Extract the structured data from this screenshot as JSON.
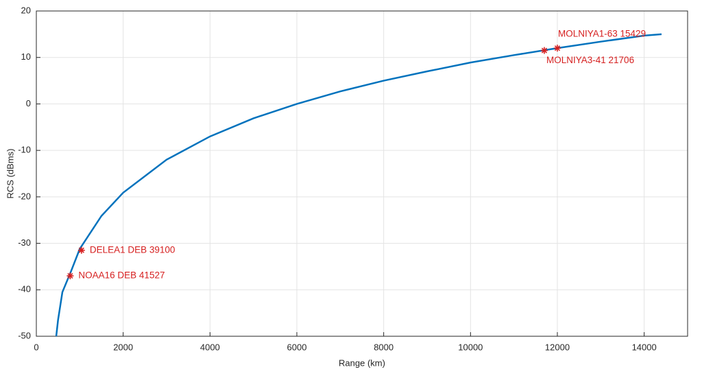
{
  "chart_data": {
    "type": "line",
    "xlabel": "Range (km)",
    "ylabel": "RCS (dBms)",
    "xlim": [
      0,
      15000
    ],
    "ylim": [
      -50,
      20
    ],
    "xticks": [
      0,
      2000,
      4000,
      6000,
      8000,
      10000,
      12000,
      14000
    ],
    "yticks": [
      -50,
      -40,
      -30,
      -20,
      -10,
      0,
      10,
      20
    ],
    "grid": true,
    "series": [
      {
        "color": "#0072bd",
        "x": [
          458,
          500,
          600,
          800,
          1000,
          1500,
          2000,
          3000,
          4000,
          5000,
          6000,
          7000,
          8000,
          9000,
          10000,
          11000,
          12000,
          13000,
          14000,
          14400
        ],
        "values": [
          -50,
          -46.5,
          -40.5,
          -36,
          -31.2,
          -24.1,
          -19.1,
          -12.0,
          -7.0,
          -3.1,
          0,
          2.7,
          5.0,
          7.0,
          8.9,
          10.5,
          12.0,
          13.4,
          14.7,
          15.0
        ]
      }
    ],
    "points_color": "#d62020",
    "points": [
      {
        "label": "NOAA16 DEB 41527",
        "x": 780,
        "y": -37
      },
      {
        "label": "DELEA1 DEB 39100",
        "x": 1040,
        "y": -31.5
      },
      {
        "label": "MOLNIYA3-41 21706",
        "x": 11700,
        "y": 11.5
      },
      {
        "label": "MOLNIYA1-63 15429",
        "x": 12000,
        "y": 12
      }
    ]
  }
}
